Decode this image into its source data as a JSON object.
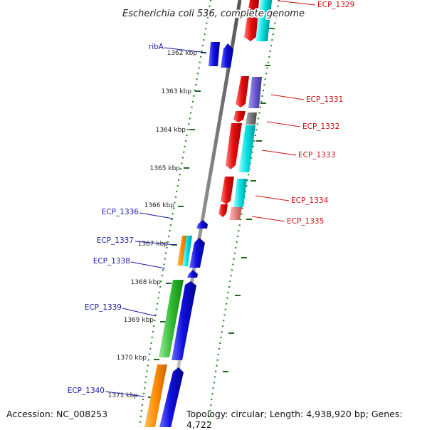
{
  "title": "Escherichia coli 536, complete genome",
  "footer": {
    "accession": "Accession: NC_008253",
    "summary": "Topology: circular; Length: 4,938,920 bp; Genes: 4,722"
  },
  "ticks": [
    "1362 kbp",
    "1363 kbp",
    "1364 kbp",
    "1365 kbp",
    "1366 kbp",
    "1367 kbp",
    "1368 kbp",
    "1369 kbp",
    "1370 kbp",
    "1371 kbp"
  ],
  "labels_left": [
    "ribA",
    "ECP_1336",
    "ECP_1337",
    "ECP_1338",
    "ECP_1339",
    "ECP_1340"
  ],
  "labels_right": [
    "ECP_1329",
    "ECP_1331",
    "ECP_1332",
    "ECP_1333",
    "ECP_1334",
    "ECP_1335"
  ],
  "colors": {
    "backbone": "#8c8c8c",
    "forward_gene": "#1010e0",
    "reverse_gene": "#e81010",
    "cog_green": "#33bb33",
    "cog_orange": "#ff8c00",
    "cog_cyan": "#00d0d0",
    "cog_purple": "#6a5acd",
    "cog_gray": "#777777",
    "cog_pink": "#e88080",
    "gc_dots": "#228b22",
    "left_label": "#1a1aa6",
    "right_label": "#cc1111"
  }
}
